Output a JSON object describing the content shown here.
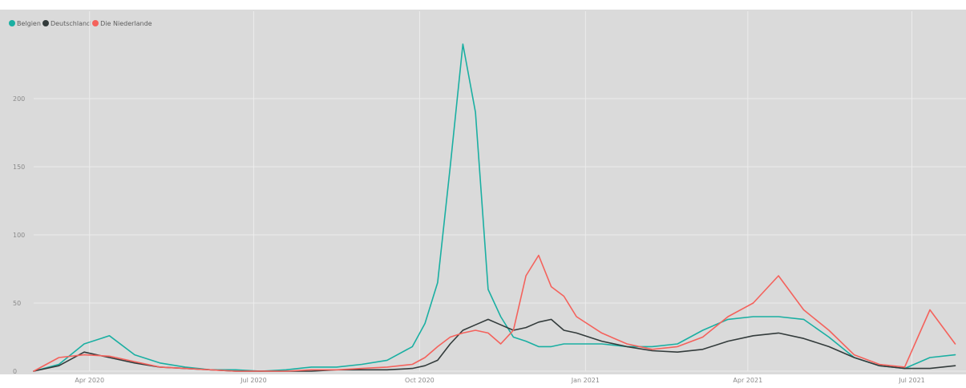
{
  "chart_data": {
    "type": "line",
    "title": "",
    "xlabel": "",
    "ylabel": "",
    "legend_position": "top-left",
    "grid": true,
    "xlim": [
      "2020-03-01",
      "2021-07-31"
    ],
    "ylim": [
      0,
      250
    ],
    "yticks": [
      0,
      50,
      100,
      150,
      200
    ],
    "ytick_labels": [
      "0",
      "50",
      "100",
      "150",
      "200"
    ],
    "xticks": [
      "2020-04-01",
      "2020-07-01",
      "2020-10-01",
      "2021-01-01",
      "2021-04-01",
      "2021-07-01"
    ],
    "xtick_labels": [
      "Apr 2020",
      "Jul 2020",
      "Oct 2020",
      "Jan 2021",
      "Apr 2021",
      "Jul 2021"
    ],
    "x": [
      "2020-03-01",
      "2020-03-15",
      "2020-03-29",
      "2020-04-12",
      "2020-04-26",
      "2020-05-10",
      "2020-05-24",
      "2020-06-07",
      "2020-06-21",
      "2020-07-05",
      "2020-07-19",
      "2020-08-02",
      "2020-08-16",
      "2020-08-30",
      "2020-09-13",
      "2020-09-27",
      "2020-10-04",
      "2020-10-11",
      "2020-10-18",
      "2020-10-25",
      "2020-11-01",
      "2020-11-08",
      "2020-11-15",
      "2020-11-22",
      "2020-11-29",
      "2020-12-06",
      "2020-12-13",
      "2020-12-20",
      "2020-12-27",
      "2021-01-10",
      "2021-01-24",
      "2021-02-07",
      "2021-02-21",
      "2021-03-07",
      "2021-03-21",
      "2021-04-04",
      "2021-04-18",
      "2021-05-02",
      "2021-05-16",
      "2021-05-30",
      "2021-06-13",
      "2021-06-27",
      "2021-07-11",
      "2021-07-25"
    ],
    "series": [
      {
        "name": "Belgien",
        "color": "#1aafa2",
        "values": [
          0,
          5,
          20,
          26,
          12,
          6,
          3,
          1,
          1,
          0,
          1,
          3,
          3,
          5,
          8,
          18,
          35,
          65,
          150,
          240,
          190,
          60,
          40,
          25,
          22,
          18,
          18,
          20,
          20,
          20,
          18,
          18,
          20,
          30,
          38,
          40,
          40,
          38,
          25,
          10,
          4,
          2,
          10,
          12
        ]
      },
      {
        "name": "Deutschland",
        "color": "#333b3b",
        "values": [
          0,
          4,
          14,
          10,
          6,
          3,
          2,
          1,
          0,
          0,
          0,
          0,
          1,
          1,
          1,
          2,
          4,
          8,
          20,
          30,
          34,
          38,
          34,
          30,
          32,
          36,
          38,
          30,
          28,
          22,
          18,
          15,
          14,
          16,
          22,
          26,
          28,
          24,
          18,
          10,
          4,
          2,
          2,
          4
        ]
      },
      {
        "name": "Die Niederlande",
        "color": "#f4625c",
        "values": [
          0,
          10,
          12,
          11,
          7,
          3,
          2,
          1,
          0,
          0,
          0,
          1,
          1,
          2,
          3,
          5,
          10,
          18,
          25,
          28,
          30,
          28,
          20,
          30,
          70,
          85,
          62,
          55,
          40,
          28,
          20,
          16,
          18,
          25,
          40,
          50,
          70,
          45,
          30,
          12,
          5,
          3,
          45,
          20
        ]
      }
    ]
  }
}
